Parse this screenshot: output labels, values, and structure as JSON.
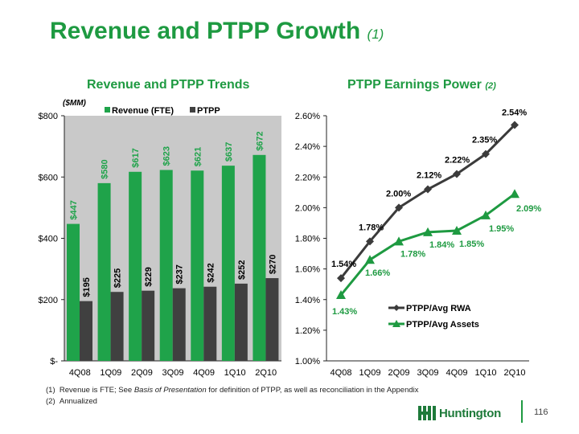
{
  "title": "Revenue and PTPP Growth",
  "title_note": "(1)",
  "footnotes": {
    "f1_num": "(1)",
    "f1_pre": "Revenue is FTE; See ",
    "f1_italic": "Basis of Presentation",
    "f1_post": " for definition of PTPP, as well as reconciliation in the Appendix",
    "f2_num": "(2)",
    "f2_text": "Annualized"
  },
  "brand": {
    "name": "Huntington"
  },
  "page_number": "116",
  "colors": {
    "green": "#1e9a41",
    "gray": "#404040",
    "bar_green": "#1fa34a"
  },
  "chart_data": [
    {
      "type": "bar",
      "title": "Revenue and PTPP Trends",
      "unit_label": "($MM)",
      "categories": [
        "4Q08",
        "1Q09",
        "2Q09",
        "3Q09",
        "4Q09",
        "1Q10",
        "2Q10"
      ],
      "series": [
        {
          "name": "Revenue (FTE)",
          "values": [
            447,
            580,
            617,
            623,
            621,
            637,
            672
          ],
          "labels": [
            "$447",
            "$580",
            "$617",
            "$623",
            "$621",
            "$637",
            "$672"
          ]
        },
        {
          "name": "PTPP",
          "values": [
            195,
            225,
            229,
            237,
            242,
            252,
            270
          ],
          "labels": [
            "$195",
            "$225",
            "$229",
            "$237",
            "$242",
            "$252",
            "$270"
          ]
        }
      ],
      "ylim": [
        0,
        800
      ],
      "yticks": [
        0,
        200,
        400,
        600,
        800
      ],
      "ytick_labels": [
        "$-",
        "$200",
        "$400",
        "$600",
        "$800"
      ],
      "legend": "top",
      "grid": false
    },
    {
      "type": "line",
      "title": "PTPP Earnings Power",
      "title_note": "(2)",
      "categories": [
        "4Q08",
        "1Q09",
        "2Q09",
        "3Q09",
        "4Q09",
        "1Q10",
        "2Q10"
      ],
      "series": [
        {
          "name": "PTPP/Avg RWA",
          "values": [
            1.54,
            1.78,
            2.0,
            2.12,
            2.22,
            2.35,
            2.54
          ],
          "labels": [
            "1.54%",
            "1.78%",
            "2.00%",
            "2.12%",
            "2.22%",
            "2.35%",
            "2.54%"
          ]
        },
        {
          "name": "PTPP/Avg Assets",
          "values": [
            1.43,
            1.66,
            1.78,
            1.84,
            1.85,
            1.95,
            2.09
          ],
          "labels": [
            "1.43%",
            "1.66%",
            "1.78%",
            "1.84%",
            "1.85%",
            "1.95%",
            "2.09%"
          ]
        }
      ],
      "ylim": [
        1.0,
        2.6
      ],
      "yticks": [
        1.0,
        1.2,
        1.4,
        1.6,
        1.8,
        2.0,
        2.2,
        2.4,
        2.6
      ],
      "ytick_labels": [
        "1.00%",
        "1.20%",
        "1.40%",
        "1.60%",
        "1.80%",
        "2.00%",
        "2.20%",
        "2.40%",
        "2.60%"
      ],
      "legend": "bottom-right",
      "grid": false
    }
  ]
}
